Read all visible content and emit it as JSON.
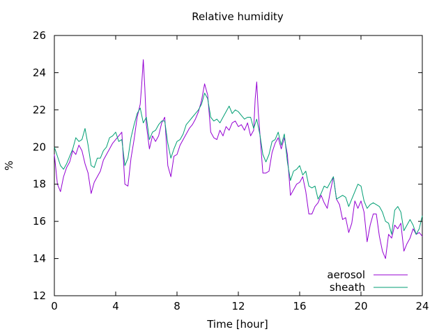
{
  "chart_data": {
    "type": "line",
    "title": "Relative humidity",
    "xlabel": "Time [hour]",
    "ylabel": "%",
    "xlim": [
      0,
      24
    ],
    "ylim": [
      12,
      26
    ],
    "xticks": [
      0,
      4,
      8,
      12,
      16,
      20,
      24
    ],
    "yticks": [
      12,
      14,
      16,
      18,
      20,
      22,
      24,
      26
    ],
    "grid": false,
    "legend_position": "bottom-right",
    "series": [
      {
        "name": "aerosol",
        "color": "#9400d3",
        "x": [
          0,
          0.2,
          0.4,
          0.6,
          0.8,
          1.0,
          1.2,
          1.4,
          1.6,
          1.8,
          2.0,
          2.2,
          2.4,
          2.6,
          2.8,
          3.0,
          3.2,
          3.4,
          3.6,
          3.8,
          4.0,
          4.2,
          4.4,
          4.6,
          4.8,
          5.0,
          5.2,
          5.4,
          5.6,
          5.7,
          5.8,
          5.9,
          6.0,
          6.2,
          6.4,
          6.6,
          6.8,
          7.0,
          7.2,
          7.4,
          7.6,
          7.8,
          8.0,
          8.2,
          8.4,
          8.6,
          8.8,
          9.0,
          9.2,
          9.4,
          9.6,
          9.8,
          10.0,
          10.2,
          10.4,
          10.6,
          10.8,
          11.0,
          11.2,
          11.4,
          11.6,
          11.8,
          12.0,
          12.2,
          12.4,
          12.6,
          12.8,
          13.0,
          13.1,
          13.2,
          13.3,
          13.4,
          13.6,
          13.8,
          14.0,
          14.2,
          14.4,
          14.6,
          14.8,
          15.0,
          15.2,
          15.4,
          15.6,
          15.8,
          16.0,
          16.2,
          16.4,
          16.6,
          16.8,
          17.0,
          17.2,
          17.4,
          17.6,
          17.8,
          18.0,
          18.2,
          18.4,
          18.6,
          18.8,
          19.0,
          19.2,
          19.4,
          19.6,
          19.8,
          20.0,
          20.2,
          20.4,
          20.6,
          20.8,
          21.0,
          21.2,
          21.4,
          21.6,
          21.8,
          22.0,
          22.2,
          22.4,
          22.6,
          22.8,
          23.0,
          23.2,
          23.4,
          23.6,
          23.8,
          24.0
        ],
        "values": [
          19.6,
          18.0,
          17.6,
          18.4,
          18.9,
          19.2,
          19.8,
          19.6,
          20.1,
          19.8,
          19.1,
          18.6,
          17.5,
          18.1,
          18.4,
          18.7,
          19.3,
          19.6,
          19.9,
          20.2,
          20.4,
          20.6,
          20.8,
          18.0,
          17.9,
          19.4,
          20.4,
          21.6,
          22.3,
          23.4,
          24.7,
          23.2,
          21.2,
          19.9,
          20.6,
          20.3,
          20.6,
          21.3,
          21.6,
          19.0,
          18.4,
          19.5,
          19.6,
          20.1,
          20.4,
          20.7,
          21.0,
          21.2,
          21.5,
          21.9,
          22.5,
          23.4,
          22.8,
          20.8,
          20.5,
          20.4,
          20.9,
          20.6,
          21.1,
          20.9,
          21.3,
          21.4,
          21.1,
          21.2,
          20.9,
          21.3,
          20.6,
          20.9,
          22.6,
          23.5,
          21.9,
          20.8,
          18.6,
          18.6,
          18.7,
          19.7,
          20.2,
          20.5,
          19.9,
          20.5,
          19.6,
          17.4,
          17.7,
          18.0,
          18.1,
          18.4,
          17.6,
          16.4,
          16.4,
          16.8,
          17.0,
          17.4,
          17.0,
          16.7,
          17.6,
          18.4,
          17.2,
          16.9,
          16.1,
          16.2,
          15.4,
          15.9,
          17.1,
          16.7,
          17.1,
          16.5,
          14.9,
          15.8,
          16.4,
          16.4,
          15.2,
          14.4,
          14.0,
          15.3,
          15.1,
          15.8,
          15.6,
          15.9,
          14.4,
          14.8,
          15.1,
          15.6,
          15.3,
          15.4,
          15.2
        ]
      },
      {
        "name": "sheath",
        "color": "#009e73",
        "x": [
          0,
          0.2,
          0.4,
          0.6,
          0.8,
          1.0,
          1.2,
          1.4,
          1.6,
          1.8,
          2.0,
          2.2,
          2.4,
          2.6,
          2.8,
          3.0,
          3.2,
          3.4,
          3.6,
          3.8,
          4.0,
          4.2,
          4.4,
          4.6,
          4.8,
          5.0,
          5.2,
          5.4,
          5.6,
          5.8,
          6.0,
          6.2,
          6.4,
          6.6,
          6.8,
          7.0,
          7.2,
          7.4,
          7.6,
          7.8,
          8.0,
          8.2,
          8.4,
          8.6,
          8.8,
          9.0,
          9.2,
          9.4,
          9.6,
          9.8,
          10.0,
          10.2,
          10.4,
          10.6,
          10.8,
          11.0,
          11.2,
          11.4,
          11.6,
          11.8,
          12.0,
          12.2,
          12.4,
          12.6,
          12.8,
          13.0,
          13.2,
          13.4,
          13.6,
          13.8,
          14.0,
          14.2,
          14.4,
          14.6,
          14.8,
          15.0,
          15.2,
          15.4,
          15.6,
          15.8,
          16.0,
          16.2,
          16.4,
          16.6,
          16.8,
          17.0,
          17.2,
          17.4,
          17.6,
          17.8,
          18.0,
          18.2,
          18.4,
          18.6,
          18.8,
          19.0,
          19.2,
          19.4,
          19.6,
          19.8,
          20.0,
          20.2,
          20.4,
          20.6,
          20.8,
          21.0,
          21.2,
          21.4,
          21.6,
          21.8,
          22.0,
          22.2,
          22.4,
          22.6,
          22.8,
          23.0,
          23.2,
          23.4,
          23.6,
          23.8,
          24.0
        ],
        "values": [
          20.0,
          19.5,
          19.0,
          18.8,
          19.1,
          19.5,
          19.9,
          20.5,
          20.3,
          20.4,
          21.0,
          20.1,
          19.0,
          18.9,
          19.4,
          19.4,
          19.8,
          20.0,
          20.5,
          20.6,
          20.8,
          20.3,
          20.4,
          19.0,
          19.4,
          20.5,
          21.2,
          21.8,
          22.1,
          21.3,
          21.6,
          20.4,
          20.8,
          20.9,
          21.2,
          21.4,
          21.4,
          20.2,
          19.4,
          19.9,
          20.3,
          20.4,
          20.7,
          21.2,
          21.4,
          21.6,
          21.8,
          22.0,
          22.3,
          22.9,
          22.6,
          21.6,
          21.4,
          21.5,
          21.3,
          21.6,
          21.9,
          22.2,
          21.8,
          22.0,
          21.9,
          21.7,
          21.5,
          21.6,
          21.6,
          21.0,
          21.5,
          20.7,
          19.6,
          19.2,
          19.6,
          20.3,
          20.4,
          20.8,
          20.1,
          20.7,
          19.2,
          18.2,
          18.7,
          18.8,
          19.0,
          18.5,
          18.7,
          17.9,
          17.8,
          17.9,
          17.2,
          17.5,
          17.9,
          17.8,
          18.1,
          18.4,
          17.2,
          17.3,
          17.4,
          17.3,
          16.8,
          17.2,
          17.6,
          18.0,
          17.9,
          17.1,
          16.7,
          16.9,
          17.0,
          16.9,
          16.8,
          16.5,
          16.0,
          15.9,
          15.3,
          16.6,
          16.8,
          16.5,
          15.5,
          15.8,
          16.1,
          15.8,
          15.3,
          15.6,
          16.3
        ]
      }
    ]
  }
}
